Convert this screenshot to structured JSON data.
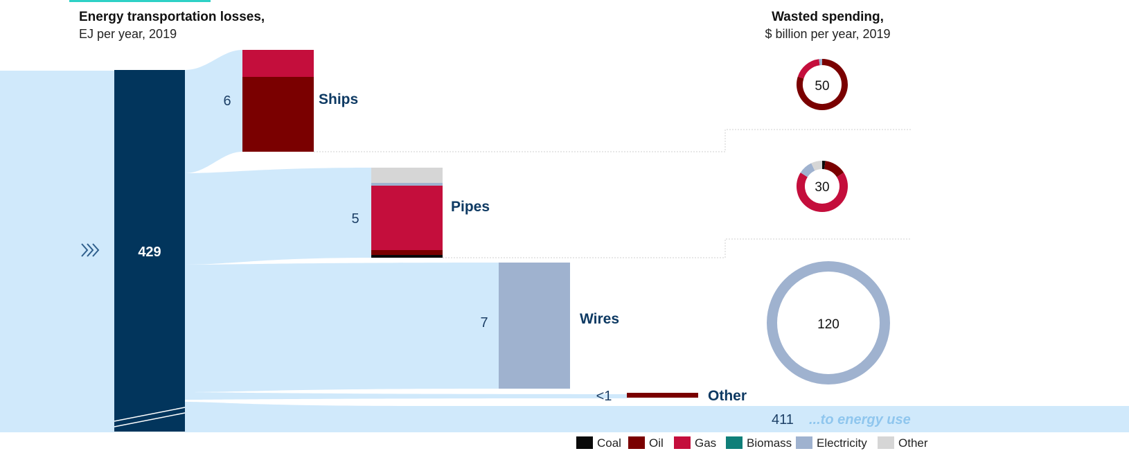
{
  "chart_data": {
    "type": "sankey",
    "title": "Energy transportation losses,",
    "subtitle": "EJ per year, 2019",
    "spending_title": "Wasted spending,",
    "spending_subtitle": "$ billion per year, 2019",
    "total": {
      "value": 429,
      "label": "429"
    },
    "flows": [
      {
        "name": "Ships",
        "value": 6,
        "value_label": "6",
        "composition": {
          "Oil": 0.73,
          "Gas": 0.27
        },
        "spending": 50,
        "spending_mix": {
          "Coal": 0.0,
          "Oil": 0.8,
          "Gas": 0.18,
          "Electricity": 0.02
        }
      },
      {
        "name": "Pipes",
        "value": 5,
        "value_label": "5",
        "composition": {
          "Coal": 0.05,
          "Oil": 0.07,
          "Gas": 0.68,
          "Electricity": 0.03,
          "Other": 0.17
        },
        "spending": 30,
        "spending_mix": {
          "Coal": 0.02,
          "Oil": 0.14,
          "Gas": 0.68,
          "Electricity": 0.09,
          "Other": 0.07
        }
      },
      {
        "name": "Wires",
        "value": 7,
        "value_label": "7",
        "composition": {
          "Electricity": 1.0
        },
        "spending": 120,
        "spending_mix": {
          "Electricity": 1.0
        }
      },
      {
        "name": "Other",
        "value": 0.5,
        "value_label": "<1",
        "composition": {
          "Oil": 1.0
        }
      }
    ],
    "destination": {
      "label": "...to energy use",
      "value": 411,
      "value_label": "411"
    },
    "legend": [
      {
        "name": "Coal",
        "color": "#0a0a0a"
      },
      {
        "name": "Oil",
        "color": "#7a0000"
      },
      {
        "name": "Gas",
        "color": "#c40e3c"
      },
      {
        "name": "Biomass",
        "color": "#0f7f79"
      },
      {
        "name": "Electricity",
        "color": "#9fb2cf"
      },
      {
        "name": "Other",
        "color": "#d6d6d6"
      }
    ],
    "colors": {
      "flow": "#d0e9fb",
      "total_bar": "#02355c",
      "accent": "#2ed1c6"
    }
  }
}
